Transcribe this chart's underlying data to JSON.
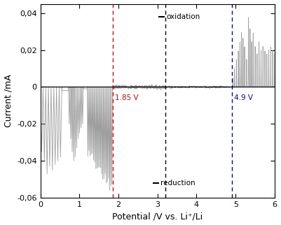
{
  "xlim": [
    0,
    6
  ],
  "ylim": [
    -0.06,
    0.045
  ],
  "xlabel": "Potential /V vs. Li⁺/Li",
  "ylabel": "Current /mA",
  "xticks": [
    0,
    1,
    2,
    3,
    4,
    5,
    6
  ],
  "yticks": [
    -0.06,
    -0.04,
    -0.02,
    0,
    0.02,
    0.04
  ],
  "ytick_labels": [
    "-0,06",
    "-0,04",
    "-0,02",
    "0",
    "0,02",
    "0,04"
  ],
  "red_vline_x": 1.85,
  "red_label": "1.85 V",
  "black_vline_x": 3.2,
  "blue_vline_x": 4.9,
  "blue_label": "4.9 V",
  "oxidation_label": "oxidation",
  "reduction_label": "reduction",
  "line_color": "#999999",
  "background_color": "#ffffff",
  "figsize": [
    4.01,
    3.22
  ],
  "dpi": 100
}
